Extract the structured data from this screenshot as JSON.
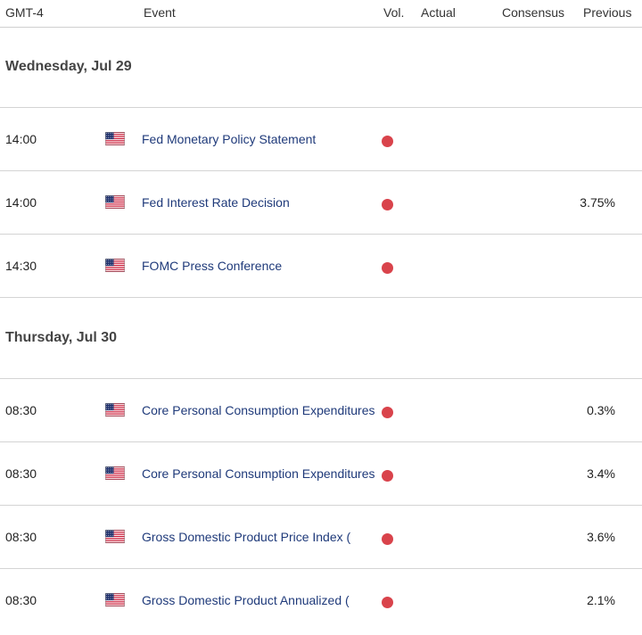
{
  "header": {
    "timezone": "GMT-4",
    "event": "Event",
    "vol": "Vol.",
    "actual": "Actual",
    "consensus": "Consensus",
    "previous": "Previous"
  },
  "colors": {
    "impact_high": "#d9434b",
    "event_text": "#1f3a7a"
  },
  "days": [
    {
      "label": "Wednesday, Jul 29",
      "rows": [
        {
          "time": "14:00",
          "flag": "us-flag-icon",
          "event": "Fed Monetary Policy Statement",
          "impact": "high",
          "actual": "",
          "consensus": "",
          "previous": ""
        },
        {
          "time": "14:00",
          "flag": "us-flag-icon",
          "event": "Fed Interest Rate Decision",
          "impact": "high",
          "actual": "",
          "consensus": "",
          "previous": "3.75%"
        },
        {
          "time": "14:30",
          "flag": "us-flag-icon",
          "event": "FOMC Press Conference",
          "impact": "high",
          "actual": "",
          "consensus": "",
          "previous": ""
        }
      ]
    },
    {
      "label": "Thursday, Jul 30",
      "rows": [
        {
          "time": "08:30",
          "flag": "us-flag-icon",
          "event": "Core Personal Consumption Expenditures",
          "impact": "high",
          "actual": "",
          "consensus": "",
          "previous": "0.3%"
        },
        {
          "time": "08:30",
          "flag": "us-flag-icon",
          "event": "Core Personal Consumption Expenditures",
          "impact": "high",
          "actual": "",
          "consensus": "",
          "previous": "3.4%"
        },
        {
          "time": "08:30",
          "flag": "us-flag-icon",
          "event": "Gross Domestic Product Price Index (",
          "impact": "high",
          "actual": "",
          "consensus": "",
          "previous": "3.6%"
        },
        {
          "time": "08:30",
          "flag": "us-flag-icon",
          "event": "Gross Domestic Product Annualized (",
          "impact": "high",
          "actual": "",
          "consensus": "",
          "previous": "2.1%"
        }
      ]
    }
  ]
}
